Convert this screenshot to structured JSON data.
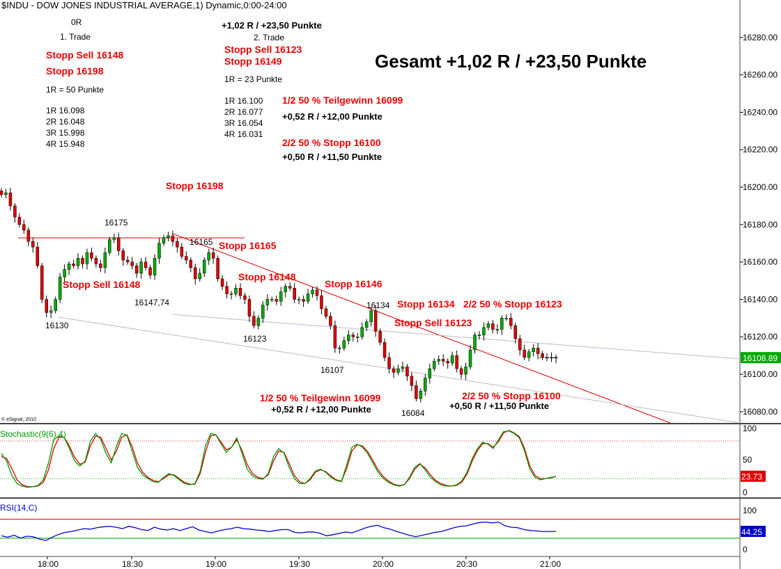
{
  "header": "$INDU - DOW JONES INDUSTRIAL AVERAGE,1) Dynamic,0:00-24:00",
  "copyright": "© eSignal, 2010",
  "colors": {
    "up": "#00aa00",
    "down": "#dd0000",
    "axis_bg": "#ffffff",
    "grid": "#bbbbbb",
    "red_text": "#ee0000",
    "last_price_bg": "#00aa00",
    "stoch_k": "#009900",
    "stoch_d": "#dd0000",
    "rsi": "#0000cc",
    "rsi_value_bg": "#0000cc",
    "stoch_value_bg": "#dd0000"
  },
  "notes": {
    "trade1": {
      "r0": "0R",
      "title": "1. Trade",
      "stop_sell": "Stopp Sell 16148",
      "stop": "Stopp 16198",
      "one_r": "1R = 50 Punkte",
      "levels": [
        "1R 16.098",
        "2R 16.048",
        "3R 15.998",
        "4R 15.948"
      ]
    },
    "trade2": {
      "result": "+1,02 R / +23,50 Punkte",
      "title": "2. Trade",
      "stop_sell": "Stopp Sell 16123",
      "stop": "Stopp 16149",
      "one_r": "1R = 23 Punkte",
      "levels": [
        "1R 16.100",
        "2R 16.077",
        "3R 16.054",
        "4R 16.031"
      ],
      "partial1": "1/2 50 % Teilgewinn 16099",
      "partial1_result": "+0,52 R / +12,00 Punkte",
      "partial2": "2/2 50 % Stopp 16100",
      "partial2_result": "+0,50 R / +11,50 Punkte"
    },
    "total": "Gesamt +1,02 R / +23,50 Punkte"
  },
  "annotations": {
    "stopp_16198": "Stopp 16198",
    "p16175": "16175",
    "p16165": "16165",
    "stopp_16165": "Stopp 16165",
    "stopp_sell_16148": "Stopp Sell 16148",
    "stopp_16148": "Stopp 16148",
    "stopp_16146": "Stopp 16146",
    "p16147": "16147,74",
    "p16130": "16130",
    "p16123": "16123",
    "p16134": "16134",
    "stopp_16134": "Stopp 16134",
    "stopp_16123": "2/2 50 % Stopp 16123",
    "stopp_sell_16123": "Stopp Sell 16123",
    "p16107": "16107",
    "p16084": "16084",
    "teilgewinn": "1/2 50 % Teilgewinn 16099",
    "teilgewinn_result": "+0,52 R / +12,00 Punkte",
    "stopp_16100": "2/2 50 % Stopp 16100",
    "stopp_16100_result": "+0,50 R / +11,50 Punkte"
  },
  "chart_data": {
    "type": "candlestick",
    "price_axis": {
      "ticks": [
        "16280.00",
        "16260.00",
        "16240.00",
        "16220.00",
        "16200.00",
        "16180.00",
        "16160.00",
        "16140.00",
        "16120.00",
        "16100.00",
        "16080.00"
      ],
      "range": [
        16074,
        16300
      ],
      "last_price": "16108.89"
    },
    "time_axis": {
      "ticks": [
        "18:00",
        "18:30",
        "19:00",
        "19:30",
        "20:00",
        "20:30",
        "21:00"
      ]
    },
    "close_series": [
      16196,
      16197,
      16190,
      16184,
      16180,
      16177,
      16171,
      16168,
      16158,
      16140,
      16133,
      16134,
      16140,
      16152,
      16156,
      16159,
      16158,
      16162,
      16159,
      16165,
      16162,
      16159,
      16157,
      16165,
      16172,
      16173,
      16166,
      16161,
      16160,
      16158,
      16154,
      16160,
      16157,
      16153,
      16162,
      16170,
      16173,
      16174,
      16171,
      16168,
      16163,
      16161,
      16157,
      16151,
      16154,
      16161,
      16165,
      16162,
      16151,
      16147,
      16143,
      16143,
      16146,
      16142,
      16140,
      16131,
      16126,
      16130,
      16137,
      16140,
      16140,
      16139,
      16144,
      16147,
      16146,
      16140,
      16140,
      16139,
      16143,
      16145,
      16142,
      16135,
      16131,
      16126,
      16114,
      16114,
      16118,
      16121,
      16120,
      16120,
      16125,
      16128,
      16134,
      16123,
      16117,
      16109,
      16103,
      16101,
      16103,
      16104,
      16099,
      16094,
      16087,
      16091,
      16098,
      16103,
      16107,
      16108,
      16107,
      16106,
      16110,
      16103,
      16100,
      16104,
      16113,
      16121,
      16121,
      16125,
      16127,
      16124,
      16124,
      16130,
      16130,
      16126,
      16119,
      16113,
      16109,
      16112,
      16114,
      16111,
      16109,
      16109,
      16109,
      16108.89
    ],
    "stochastic": {
      "label": "Stochastic(9(6),4)",
      "ticks": [
        "100",
        "50",
        "0"
      ],
      "last_value": "23.73",
      "k": [
        60,
        48,
        25,
        12,
        8,
        6,
        7,
        9,
        18,
        45,
        82,
        88,
        86,
        68,
        48,
        40,
        48,
        80,
        92,
        82,
        60,
        45,
        72,
        92,
        89,
        64,
        38,
        26,
        20,
        15,
        14,
        22,
        28,
        25,
        18,
        12,
        10,
        12,
        32,
        72,
        92,
        90,
        75,
        62,
        70,
        85,
        60,
        35,
        24,
        20,
        19,
        28,
        55,
        68,
        61,
        38,
        20,
        12,
        12,
        20,
        32,
        35,
        30,
        22,
        17,
        15,
        42,
        70,
        75,
        70,
        60,
        45,
        30,
        20,
        14,
        10,
        8,
        10,
        22,
        38,
        44,
        34,
        22,
        15,
        10,
        8,
        8,
        10,
        16,
        30,
        52,
        68,
        78,
        75,
        68,
        82,
        95,
        96,
        92,
        85,
        64,
        35,
        22,
        18,
        20,
        22,
        23
      ],
      "d": [
        55,
        52,
        36,
        18,
        10,
        7,
        7,
        8,
        14,
        34,
        68,
        86,
        86,
        72,
        54,
        43,
        46,
        72,
        88,
        86,
        68,
        50,
        64,
        86,
        90,
        71,
        45,
        30,
        22,
        17,
        15,
        20,
        26,
        26,
        20,
        14,
        11,
        11,
        28,
        62,
        88,
        90,
        78,
        66,
        70,
        82,
        65,
        42,
        28,
        22,
        20,
        26,
        48,
        64,
        62,
        44,
        25,
        15,
        12,
        18,
        30,
        34,
        31,
        24,
        18,
        16,
        36,
        64,
        74,
        72,
        63,
        49,
        34,
        23,
        16,
        11,
        9,
        10,
        20,
        35,
        43,
        37,
        26,
        17,
        12,
        9,
        8,
        9,
        14,
        27,
        48,
        65,
        76,
        76,
        70,
        79,
        93,
        97,
        93,
        87,
        68,
        40,
        25,
        20,
        20,
        21,
        23.73
      ]
    },
    "rsi": {
      "label": "RSI(14,C)",
      "ticks": [
        "100",
        "0"
      ],
      "last_value": "44.25",
      "values": [
        35,
        32,
        36,
        30,
        34,
        33,
        28,
        25,
        32,
        38,
        42,
        44,
        47,
        50,
        49,
        52,
        54,
        55,
        53,
        50,
        55,
        52,
        48,
        46,
        53,
        49,
        47,
        50,
        46,
        50,
        54,
        47,
        44,
        41,
        45,
        48,
        50,
        53,
        50,
        49,
        47,
        46,
        44,
        46,
        48,
        48,
        42,
        41,
        43,
        43,
        40,
        35,
        37,
        40,
        43,
        41,
        46,
        51,
        55,
        57,
        52,
        49,
        44,
        40,
        36,
        33,
        36,
        39,
        42,
        44,
        48,
        52,
        55,
        56,
        60,
        63,
        64,
        62,
        64,
        56,
        53,
        52,
        48,
        46,
        45,
        44,
        44,
        44.25
      ]
    }
  }
}
